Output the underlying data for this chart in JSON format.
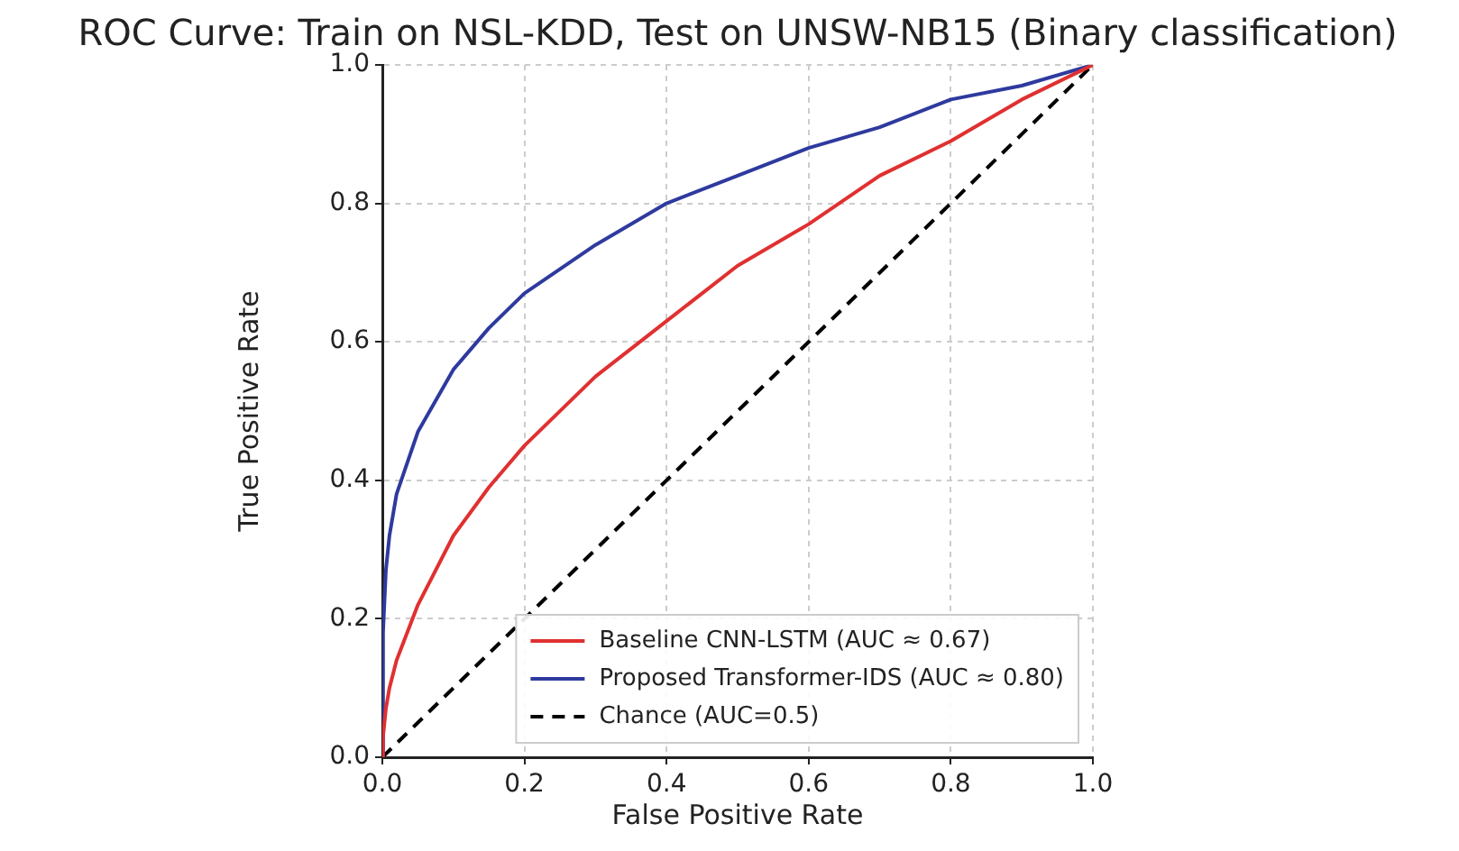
{
  "chart_data": {
    "type": "line",
    "title": "ROC Curve: Train on NSL-KDD, Test on UNSW-NB15 (Binary classification)",
    "xlabel": "False Positive Rate",
    "ylabel": "True Positive Rate",
    "x": [
      0,
      0.001,
      0.005,
      0.01,
      0.02,
      0.05,
      0.1,
      0.15,
      0.2,
      0.3,
      0.4,
      0.5,
      0.6,
      0.7,
      0.8,
      0.9,
      1
    ],
    "series": [
      {
        "name": "Baseline CNN-LSTM (AUC ≈ 0.67)",
        "color": "#e03030",
        "values": [
          0,
          0.03,
          0.07,
          0.1,
          0.14,
          0.22,
          0.32,
          0.39,
          0.45,
          0.55,
          0.63,
          0.71,
          0.77,
          0.84,
          0.89,
          0.95,
          1
        ]
      },
      {
        "name": "Proposed Transformer-IDS (AUC ≈ 0.80)",
        "color": "#2e3a9e",
        "values": [
          0,
          0.18,
          0.27,
          0.32,
          0.38,
          0.47,
          0.56,
          0.62,
          0.67,
          0.74,
          0.8,
          0.84,
          0.88,
          0.91,
          0.95,
          0.97,
          1
        ]
      },
      {
        "name": "Chance (AUC=0.5)",
        "color": "#000000",
        "x": [
          0,
          1
        ],
        "values": [
          0,
          1
        ],
        "line_style": "dashed"
      }
    ],
    "xlim": [
      0,
      1
    ],
    "ylim": [
      0,
      1
    ],
    "xticks": [
      {
        "value": 0,
        "label": "0.0"
      },
      {
        "value": 0.2,
        "label": "0.2"
      },
      {
        "value": 0.4,
        "label": "0.4"
      },
      {
        "value": 0.6,
        "label": "0.6"
      },
      {
        "value": 0.8,
        "label": "0.8"
      },
      {
        "value": 1,
        "label": "1.0"
      }
    ],
    "yticks": [
      {
        "value": 0,
        "label": "0.0"
      },
      {
        "value": 0.2,
        "label": "0.2"
      },
      {
        "value": 0.4,
        "label": "0.4"
      },
      {
        "value": 0.6,
        "label": "0.6"
      },
      {
        "value": 0.8,
        "label": "0.8"
      },
      {
        "value": 1,
        "label": "1.0"
      }
    ],
    "grid": true,
    "legend": "bottom right",
    "marker": "none",
    "line_style": "solid"
  }
}
